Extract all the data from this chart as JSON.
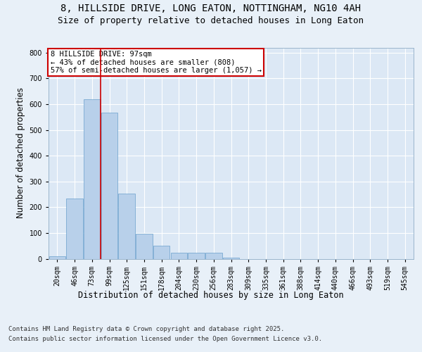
{
  "title_line1": "8, HILLSIDE DRIVE, LONG EATON, NOTTINGHAM, NG10 4AH",
  "title_line2": "Size of property relative to detached houses in Long Eaton",
  "xlabel": "Distribution of detached houses by size in Long Eaton",
  "ylabel": "Number of detached properties",
  "categories": [
    "20sqm",
    "46sqm",
    "73sqm",
    "99sqm",
    "125sqm",
    "151sqm",
    "178sqm",
    "204sqm",
    "230sqm",
    "256sqm",
    "283sqm",
    "309sqm",
    "335sqm",
    "361sqm",
    "388sqm",
    "414sqm",
    "440sqm",
    "466sqm",
    "493sqm",
    "519sqm",
    "545sqm"
  ],
  "values": [
    10,
    233,
    620,
    568,
    252,
    97,
    50,
    23,
    23,
    23,
    5,
    0,
    0,
    0,
    0,
    0,
    0,
    0,
    0,
    0,
    0
  ],
  "bar_color": "#b8d0ea",
  "bar_edge_color": "#6aa0cc",
  "vline_x": 2.5,
  "annotation_line1": "8 HILLSIDE DRIVE: 97sqm",
  "annotation_line2": "← 43% of detached houses are smaller (808)",
  "annotation_line3": "57% of semi-detached houses are larger (1,057) →",
  "annotation_box_color": "#ffffff",
  "annotation_box_edge": "#cc0000",
  "vline_color": "#cc0000",
  "ylim": [
    0,
    820
  ],
  "yticks": [
    0,
    100,
    200,
    300,
    400,
    500,
    600,
    700,
    800
  ],
  "bg_color": "#e8f0f8",
  "plot_bg_color": "#dce8f5",
  "grid_color": "#ffffff",
  "footer_line1": "Contains HM Land Registry data © Crown copyright and database right 2025.",
  "footer_line2": "Contains public sector information licensed under the Open Government Licence v3.0.",
  "title_fontsize": 10,
  "subtitle_fontsize": 9,
  "axis_label_fontsize": 8.5,
  "tick_fontsize": 7,
  "footer_fontsize": 6.5,
  "annotation_fontsize": 7.5
}
